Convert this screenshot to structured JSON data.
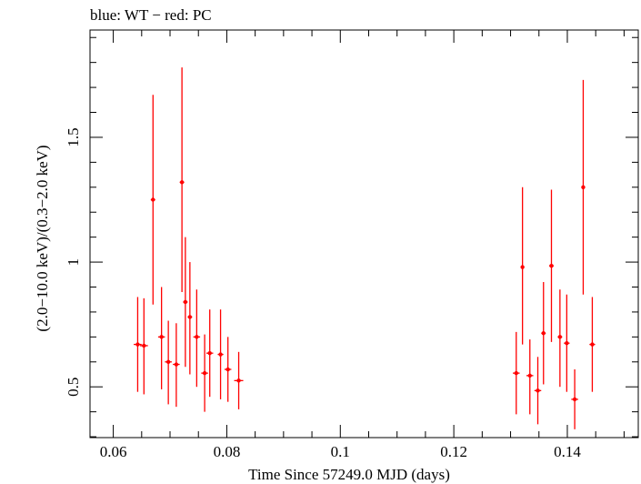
{
  "chart_data": {
    "type": "scatter",
    "title": "blue: WT − red: PC",
    "xlabel": "Time Since 57249.0 MJD (days)",
    "ylabel": "(2.0−10.0 keV)/(0.3−2.0 keV)",
    "xlim": [
      0.0559,
      0.1525
    ],
    "ylim": [
      0.2966,
      1.93
    ],
    "x_ticks": [
      "0.06",
      "0.08",
      "0.1",
      "0.12",
      "0.14"
    ],
    "y_ticks": [
      "0.5",
      "1",
      "1.5"
    ],
    "grid": false,
    "colors": {
      "series_red": "#ff0000",
      "axis": "#000000"
    },
    "series": [
      {
        "color": "#ff0000",
        "points": [
          {
            "x": 0.0643,
            "y": 0.67,
            "xerr": 0.0007,
            "ylo": 0.48,
            "yhi": 0.86
          },
          {
            "x": 0.0654,
            "y": 0.665,
            "xerr": 0.0007,
            "ylo": 0.47,
            "yhi": 0.855
          },
          {
            "x": 0.067,
            "y": 1.25,
            "xerr": 0.0004,
            "ylo": 0.83,
            "yhi": 1.67
          },
          {
            "x": 0.0685,
            "y": 0.7,
            "xerr": 0.0006,
            "ylo": 0.49,
            "yhi": 0.9
          },
          {
            "x": 0.0697,
            "y": 0.6,
            "xerr": 0.0006,
            "ylo": 0.43,
            "yhi": 0.765
          },
          {
            "x": 0.0711,
            "y": 0.59,
            "xerr": 0.0006,
            "ylo": 0.42,
            "yhi": 0.755
          },
          {
            "x": 0.0721,
            "y": 1.32,
            "xerr": 0.0004,
            "ylo": 0.88,
            "yhi": 1.78
          },
          {
            "x": 0.0727,
            "y": 0.84,
            "xerr": 0.0004,
            "ylo": 0.58,
            "yhi": 1.1
          },
          {
            "x": 0.0735,
            "y": 0.78,
            "xerr": 0.0004,
            "ylo": 0.55,
            "yhi": 1.0
          },
          {
            "x": 0.0747,
            "y": 0.7,
            "xerr": 0.0006,
            "ylo": 0.5,
            "yhi": 0.89
          },
          {
            "x": 0.0761,
            "y": 0.555,
            "xerr": 0.0006,
            "ylo": 0.4,
            "yhi": 0.71
          },
          {
            "x": 0.077,
            "y": 0.635,
            "xerr": 0.0006,
            "ylo": 0.46,
            "yhi": 0.81
          },
          {
            "x": 0.0789,
            "y": 0.63,
            "xerr": 0.0005,
            "ylo": 0.45,
            "yhi": 0.81
          },
          {
            "x": 0.0802,
            "y": 0.57,
            "xerr": 0.0006,
            "ylo": 0.44,
            "yhi": 0.7
          },
          {
            "x": 0.0821,
            "y": 0.525,
            "xerr": 0.0008,
            "ylo": 0.41,
            "yhi": 0.64
          },
          {
            "x": 0.131,
            "y": 0.555,
            "xerr": 0.0006,
            "ylo": 0.39,
            "yhi": 0.72
          },
          {
            "x": 0.1321,
            "y": 0.98,
            "xerr": 0.0003,
            "ylo": 0.67,
            "yhi": 1.3
          },
          {
            "x": 0.1334,
            "y": 0.545,
            "xerr": 0.0006,
            "ylo": 0.39,
            "yhi": 0.69
          },
          {
            "x": 0.1348,
            "y": 0.485,
            "xerr": 0.0006,
            "ylo": 0.35,
            "yhi": 0.62
          },
          {
            "x": 0.1358,
            "y": 0.715,
            "xerr": 0.0004,
            "ylo": 0.51,
            "yhi": 0.92
          },
          {
            "x": 0.1372,
            "y": 0.985,
            "xerr": 0.0004,
            "ylo": 0.68,
            "yhi": 1.29
          },
          {
            "x": 0.1387,
            "y": 0.7,
            "xerr": 0.0004,
            "ylo": 0.5,
            "yhi": 0.89
          },
          {
            "x": 0.1399,
            "y": 0.675,
            "xerr": 0.0005,
            "ylo": 0.48,
            "yhi": 0.87
          },
          {
            "x": 0.1413,
            "y": 0.45,
            "xerr": 0.0006,
            "ylo": 0.33,
            "yhi": 0.57
          },
          {
            "x": 0.1428,
            "y": 1.3,
            "xerr": 0.0003,
            "ylo": 0.87,
            "yhi": 1.73
          },
          {
            "x": 0.1444,
            "y": 0.67,
            "xerr": 0.0005,
            "ylo": 0.48,
            "yhi": 0.86
          }
        ]
      }
    ]
  }
}
